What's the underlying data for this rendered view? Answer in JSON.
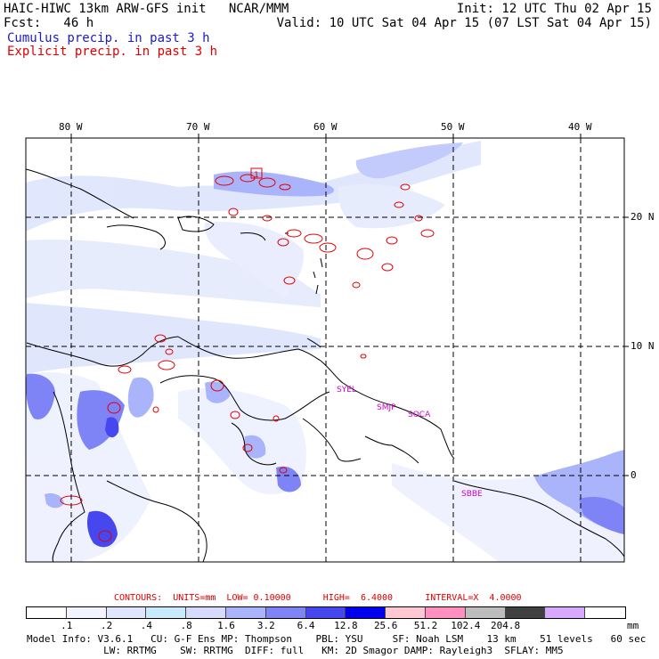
{
  "header": {
    "title": "HAIC-HIWC 13km ARW-GFS init   NCAR/MMM",
    "fcst": "Fcst:   46 h",
    "init": "Init: 12 UTC Thu 02 Apr 15",
    "valid": "Valid: 10 UTC Sat 04 Apr 15 (07 LST Sat 04 Apr 15)",
    "field1": "Cumulus precip. in past 3 h",
    "field2": "Explicit precip. in past 3 h"
  },
  "map": {
    "lon_labels": [
      "80 W",
      "70 W",
      "60 W",
      "50 W",
      "40 W"
    ],
    "lat_labels": [
      "20 N",
      "10 N",
      "0"
    ],
    "stations": [
      "1",
      "SYEL",
      "SMJP",
      "SOCA",
      "SBBE"
    ],
    "colors": {
      "light_blue": "#dfe6fd",
      "mid_blue": "#aab4fb",
      "deep_blue": "#4a4af0",
      "contour_red": "#e00000",
      "station_magenta": "#cc00cc"
    }
  },
  "contours": {
    "text": "CONTOURS:  UNITS=mm  LOW= 0.10000      HIGH=  6.4000      INTERVAL=X  4.0000"
  },
  "colorbar": {
    "colors": [
      "#ffffff",
      "#f2f4fe",
      "#dfe6fd",
      "#c9e9fc",
      "#d7d9fd",
      "#aab4fb",
      "#7e84f6",
      "#4747ef",
      "#0000ee",
      "#ffc8d2",
      "#ff90c0",
      "#bdbdbd",
      "#404040",
      "#d7a8fb",
      "#ffffff"
    ],
    "ticks": [
      ".1",
      ".2",
      ".4",
      ".8",
      "1.6",
      "3.2",
      "6.4",
      "12.8",
      "25.6",
      "51.2",
      "102.4",
      "204.8"
    ],
    "unit": "mm"
  },
  "model_info": {
    "line1": "Model Info: V3.6.1   CU: G-F Ens MP: Thompson    PBL: YSU     SF: Noah LSM    13 km    51 levels   60 sec",
    "line2": "             LW: RRTMG    SW: RRTMG  DIFF: full   KM: 2D Smagor DAMP: Rayleigh3  SFLAY: MM5"
  }
}
